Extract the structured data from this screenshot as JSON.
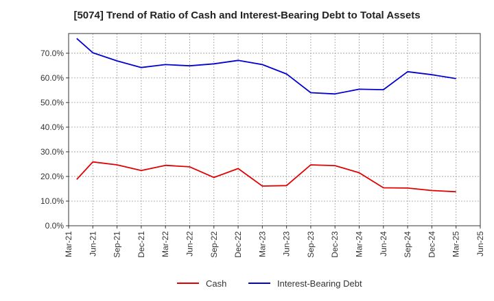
{
  "chart_data": {
    "type": "line",
    "title": "[5074]  Trend of Ratio of Cash and Interest-Bearing Debt to Total Assets",
    "xlabel": "",
    "ylabel": "",
    "x_ticks": [
      "Mar-21",
      "Jun-21",
      "Sep-21",
      "Dec-21",
      "Mar-22",
      "Jun-22",
      "Sep-22",
      "Dec-22",
      "Mar-23",
      "Jun-23",
      "Sep-23",
      "Dec-23",
      "Mar-24",
      "Jun-24",
      "Sep-24",
      "Dec-24",
      "Mar-25",
      "Jun-25"
    ],
    "y_ticks": [
      "0.0%",
      "10.0%",
      "20.0%",
      "30.0%",
      "40.0%",
      "50.0%",
      "60.0%",
      "70.0%"
    ],
    "ylim": [
      0,
      78
    ],
    "grid": true,
    "legend_position": "bottom",
    "x": [
      "Apr-21",
      "Jun-21",
      "Sep-21",
      "Dec-21",
      "Mar-22",
      "Jun-22",
      "Sep-22",
      "Dec-22",
      "Mar-23",
      "Jun-23",
      "Sep-23",
      "Dec-23",
      "Mar-24",
      "Jun-24",
      "Sep-24",
      "Dec-24",
      "Mar-25"
    ],
    "series": [
      {
        "name": "Cash",
        "color": "#e00000",
        "values": [
          18.8,
          25.9,
          24.7,
          22.4,
          24.5,
          23.9,
          19.6,
          23.2,
          16.1,
          16.3,
          24.7,
          24.4,
          21.5,
          15.4,
          15.3,
          14.3,
          13.8
        ]
      },
      {
        "name": "Interest-Bearing Debt",
        "color": "#0000d0",
        "values": [
          76.0,
          70.2,
          66.9,
          64.2,
          65.4,
          64.9,
          65.7,
          67.1,
          65.4,
          61.6,
          54.0,
          53.5,
          55.4,
          55.2,
          62.5,
          61.3,
          59.7
        ]
      }
    ]
  }
}
